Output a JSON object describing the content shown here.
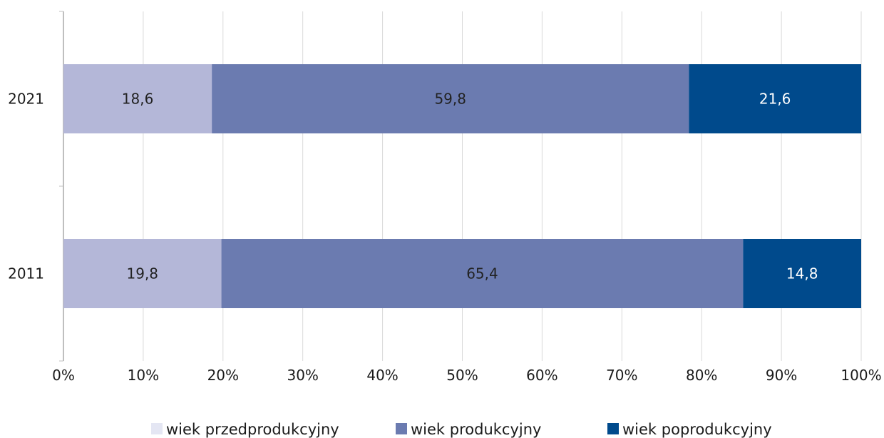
{
  "chart_data": {
    "type": "bar",
    "orientation": "horizontal",
    "stacked": "percent",
    "categories": [
      "2021",
      "2011"
    ],
    "series": [
      {
        "name": "wiek przedprodukcyjny",
        "values": [
          18.6,
          19.8
        ],
        "labels": [
          "18,6",
          "19,8"
        ],
        "color": "#b4b7d8",
        "label_color": "#222222"
      },
      {
        "name": "wiek produkcyjny",
        "values": [
          59.8,
          65.4
        ],
        "labels": [
          "59,8",
          "65,4"
        ],
        "color": "#6b7bb0",
        "label_color": "#222222"
      },
      {
        "name": "wiek poprodukcyjny",
        "values": [
          21.6,
          14.8
        ],
        "labels": [
          "21,6",
          "14,8"
        ],
        "color": "#004a8c",
        "label_color": "#ffffff"
      }
    ],
    "x_ticks": [
      0,
      10,
      20,
      30,
      40,
      50,
      60,
      70,
      80,
      90,
      100
    ],
    "x_tick_labels": [
      "0%",
      "10%",
      "20%",
      "30%",
      "40%",
      "50%",
      "60%",
      "70%",
      "80%",
      "90%",
      "100%"
    ],
    "xlim": [
      0,
      100
    ],
    "grid": "vertical",
    "legend": {
      "position": "bottom",
      "swatch_colors": [
        "#e4e6f3",
        "#6b7bb0",
        "#004a8c"
      ]
    }
  }
}
